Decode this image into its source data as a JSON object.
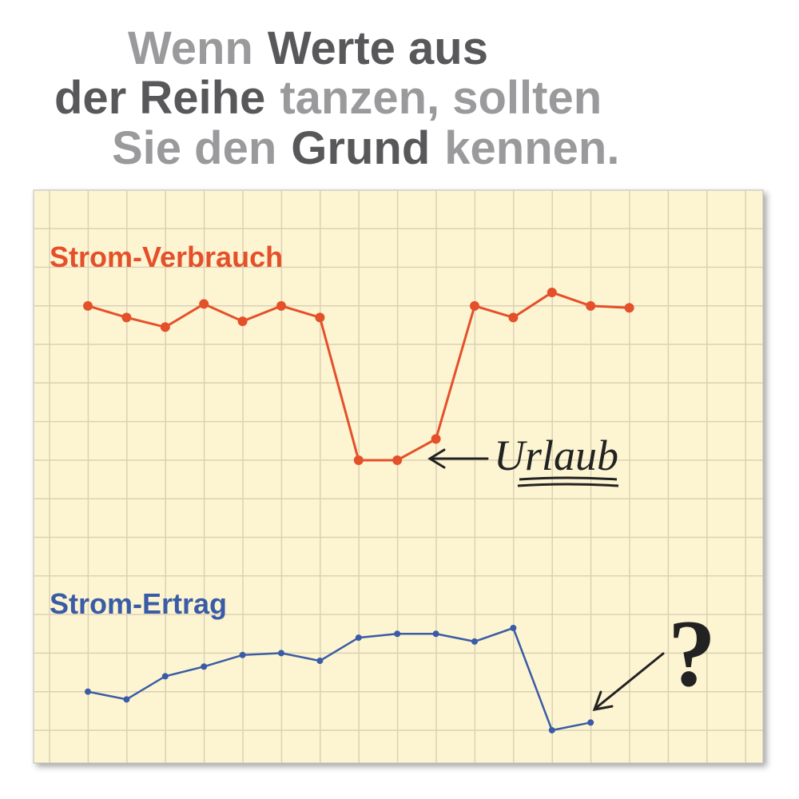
{
  "chart_data": {
    "type": "line",
    "title_lines": [
      [
        {
          "text": "Wenn",
          "strong": false
        },
        {
          "text": "Werte aus",
          "strong": true
        }
      ],
      [
        {
          "text": "der Reihe",
          "strong": true
        },
        {
          "text": "tanzen, sollten",
          "strong": false
        }
      ],
      [
        {
          "text": "Sie den",
          "strong": false
        },
        {
          "text": "Grund",
          "strong": true
        },
        {
          "text": "kennen.",
          "strong": false
        }
      ]
    ],
    "categories": [
      null,
      null,
      null,
      null,
      null,
      null,
      null,
      null,
      null,
      null,
      null,
      null,
      null,
      null,
      null
    ],
    "ylim": [
      -0.85,
      14
    ],
    "series": [
      {
        "name": "Strom-Verbrauch",
        "color": "#e4502a",
        "values": [
          11.0,
          10.7,
          10.45,
          11.05,
          10.6,
          11.0,
          10.7,
          7.0,
          7.0,
          7.55,
          11.0,
          10.7,
          11.35,
          11.0,
          10.95
        ]
      },
      {
        "name": "Strom-Ertrag",
        "color": "#3a5ca6",
        "values": [
          1.0,
          0.8,
          1.4,
          1.65,
          1.95,
          2.0,
          1.8,
          2.4,
          2.5,
          2.5,
          2.3,
          2.65,
          0.0,
          0.2,
          null
        ]
      }
    ],
    "annotations": [
      {
        "text": "Urlaub"
      },
      {
        "text": "?"
      }
    ]
  }
}
